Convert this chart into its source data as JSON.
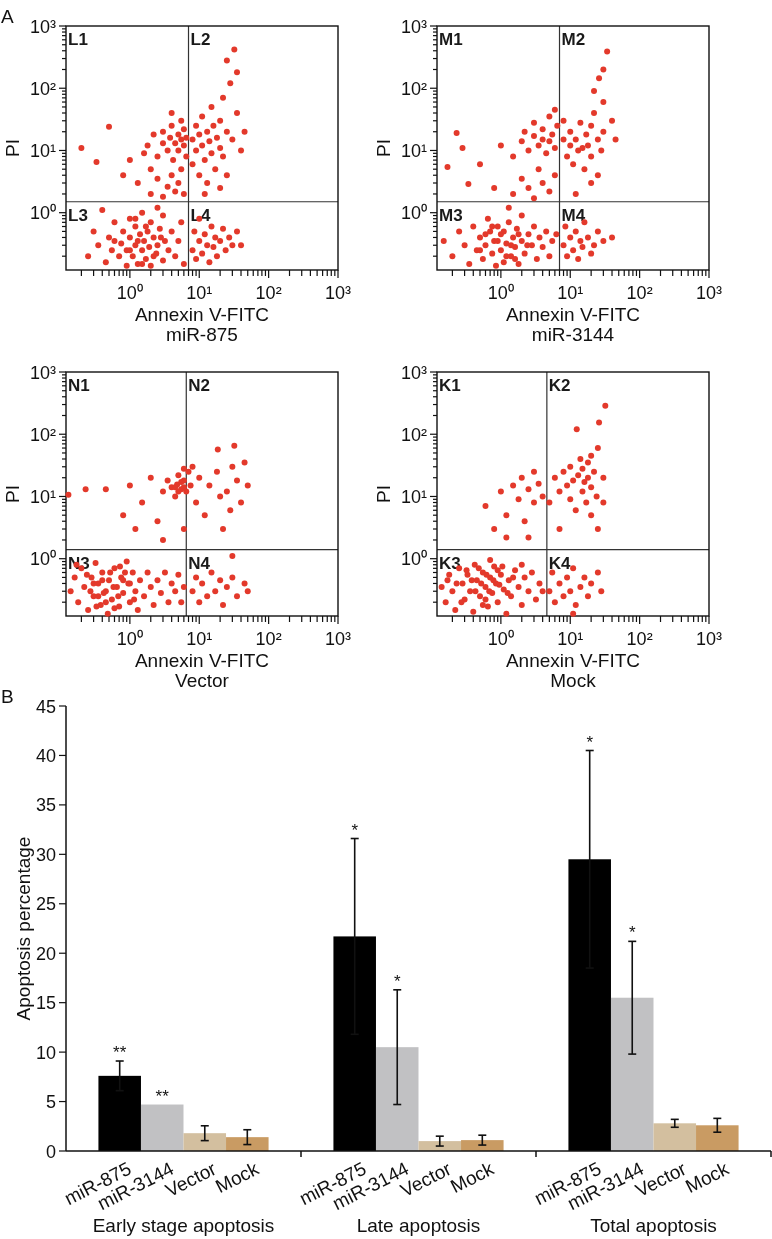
{
  "chart_data": [
    {
      "type": "scatter",
      "title": "A",
      "xlabel": "Annexin V-FITC",
      "ylabel": "PI",
      "annotations": [
        "L1",
        "L2",
        "L3",
        "L4",
        "miR-875"
      ],
      "log": "xy",
      "marker": "circle",
      "color": "#e3392b",
      "xlim": [
        0.12,
        1000
      ],
      "ylim": [
        0.12,
        1000
      ],
      "xticks": [
        {
          "value": 0.2,
          "label": null
        },
        {
          "value": 0.3,
          "label": null
        },
        {
          "value": 0.4,
          "label": null
        },
        {
          "value": 0.5,
          "label": null
        },
        {
          "value": 0.6,
          "label": null
        },
        {
          "value": 0.7,
          "label": null
        },
        {
          "value": 0.8,
          "label": null
        },
        {
          "value": 0.9,
          "label": null
        },
        {
          "value": 1,
          "label": "10⁰"
        },
        {
          "value": 2,
          "label": null
        },
        {
          "value": 3,
          "label": null
        },
        {
          "value": 4,
          "label": null
        },
        {
          "value": 5,
          "label": null
        },
        {
          "value": 6,
          "label": null
        },
        {
          "value": 7,
          "label": null
        },
        {
          "value": 8,
          "label": null
        },
        {
          "value": 9,
          "label": null
        },
        {
          "value": 10,
          "label": "10¹"
        },
        {
          "value": 20,
          "label": null
        },
        {
          "value": 30,
          "label": null
        },
        {
          "value": 40,
          "label": null
        },
        {
          "value": 50,
          "label": null
        },
        {
          "value": 60,
          "label": null
        },
        {
          "value": 70,
          "label": null
        },
        {
          "value": 80,
          "label": null
        },
        {
          "value": 90,
          "label": null
        },
        {
          "value": 100,
          "label": "10²"
        },
        {
          "value": 200,
          "label": null
        },
        {
          "value": 300,
          "label": null
        },
        {
          "value": 400,
          "label": null
        },
        {
          "value": 500,
          "label": null
        },
        {
          "value": 600,
          "label": null
        },
        {
          "value": 700,
          "label": null
        },
        {
          "value": 800,
          "label": null
        },
        {
          "value": 900,
          "label": null
        },
        {
          "value": 1000,
          "label": "10³"
        }
      ],
      "yticks": [
        {
          "value": 0.2,
          "label": null
        },
        {
          "value": 0.3,
          "label": null
        },
        {
          "value": 0.4,
          "label": null
        },
        {
          "value": 0.5,
          "label": null
        },
        {
          "value": 0.6,
          "label": null
        },
        {
          "value": 0.7,
          "label": null
        },
        {
          "value": 0.8,
          "label": null
        },
        {
          "value": 0.9,
          "label": null
        },
        {
          "value": 1,
          "label": "10⁰"
        },
        {
          "value": 2,
          "label": null
        },
        {
          "value": 3,
          "label": null
        },
        {
          "value": 4,
          "label": null
        },
        {
          "value": 5,
          "label": null
        },
        {
          "value": 6,
          "label": null
        },
        {
          "value": 7,
          "label": null
        },
        {
          "value": 8,
          "label": null
        },
        {
          "value": 9,
          "label": null
        },
        {
          "value": 10,
          "label": "10¹"
        },
        {
          "value": 20,
          "label": null
        },
        {
          "value": 30,
          "label": null
        },
        {
          "value": 40,
          "label": null
        },
        {
          "value": 50,
          "label": null
        },
        {
          "value": 60,
          "label": null
        },
        {
          "value": 70,
          "label": null
        },
        {
          "value": 80,
          "label": null
        },
        {
          "value": 90,
          "label": null
        },
        {
          "value": 100,
          "label": "10²"
        },
        {
          "value": 200,
          "label": null
        },
        {
          "value": 300,
          "label": null
        },
        {
          "value": 400,
          "label": null
        },
        {
          "value": 500,
          "label": null
        },
        {
          "value": 600,
          "label": null
        },
        {
          "value": 700,
          "label": null
        },
        {
          "value": 800,
          "label": null
        },
        {
          "value": 900,
          "label": null
        },
        {
          "value": 1000,
          "label": "10³"
        }
      ],
      "ref_lines": [
        {
          "axis": "x",
          "value": 7
        },
        {
          "axis": "y",
          "value": 1.5
        }
      ],
      "x": [
        0.25,
        0.3,
        0.35,
        0.45,
        0.5,
        0.55,
        0.6,
        0.7,
        0.75,
        0.8,
        0.9,
        0.9,
        1,
        1,
        1.1,
        1.2,
        1.2,
        1.3,
        1.4,
        1.5,
        1.5,
        1.6,
        1.7,
        1.8,
        1.9,
        2,
        2,
        2.2,
        2.4,
        2.5,
        2.7,
        3,
        3,
        3.2,
        3.6,
        4,
        4.5,
        5,
        5.5,
        6,
        2.5,
        0.4,
        1.3,
        1.7,
        2.2,
        1,
        0.6,
        2.8,
        1.5,
        1.2,
        8,
        8.5,
        9,
        10,
        10,
        11,
        12,
        13,
        14,
        15,
        16,
        17,
        18,
        20,
        22,
        24,
        27,
        30,
        35,
        40,
        2,
        2.5,
        3,
        3.5,
        4,
        4.5,
        5,
        5.5,
        6,
        2.5,
        3,
        3,
        3.5,
        3.8,
        4,
        4.2,
        4.5,
        5,
        5,
        5.5,
        5.5,
        6,
        6,
        6.5,
        6.5,
        4,
        1.8,
        2.2,
        8,
        8,
        9,
        9,
        10,
        10,
        11,
        11,
        12,
        13,
        13,
        14,
        15,
        15,
        16,
        17,
        18,
        20,
        20,
        22,
        22,
        25,
        25,
        28,
        30,
        32,
        35,
        35,
        40,
        45,
        12,
        20,
        25,
        0.2,
        0.33,
        0.5,
        0.8,
        1,
        1.3,
        1.6,
        2
      ],
      "values": [
        0.2,
        0.5,
        0.3,
        0.16,
        0.4,
        0.25,
        0.7,
        0.2,
        0.32,
        0.5,
        0.14,
        0.25,
        0.4,
        0.8,
        0.2,
        0.3,
        0.6,
        0.15,
        0.45,
        0.25,
        1,
        0.35,
        0.18,
        0.5,
        0.28,
        0.7,
        0.14,
        0.4,
        0.22,
        0.3,
        0.55,
        0.17,
        0.9,
        0.35,
        0.25,
        0.5,
        0.2,
        0.35,
        0.7,
        0.15,
        1.2,
        1.1,
        0.35,
        0.6,
        0.2,
        0.25,
        0.35,
        0.4,
        0.15,
        0.8,
        0.25,
        0.5,
        0.18,
        0.35,
        0.8,
        0.22,
        0.45,
        0.3,
        0.16,
        0.6,
        0.28,
        0.4,
        0.2,
        0.35,
        0.55,
        0.25,
        0.4,
        0.3,
        0.5,
        0.3,
        2,
        3.5,
        1.8,
        2.6,
        4,
        2.2,
        3,
        5,
        2,
        8,
        13,
        20,
        10,
        16,
        25,
        7,
        13,
        18,
        10,
        15,
        30,
        12,
        22,
        8,
        16,
        40,
        12,
        18,
        15,
        6,
        10,
        25,
        4,
        18,
        12,
        35,
        7,
        20,
        3,
        14,
        9,
        50,
        25,
        5,
        16,
        11,
        30,
        8,
        70,
        20,
        4,
        120,
        15,
        420,
        40,
        180,
        10,
        20,
        2,
        2.5,
        280,
        11,
        6.5,
        24,
        4,
        7,
        3,
        9,
        5
      ]
    },
    {
      "type": "scatter",
      "xlabel": "Annexin V-FITC",
      "ylabel": "PI",
      "annotations": [
        "M1",
        "M2",
        "M3",
        "M4",
        "miR-3144"
      ],
      "log": "xy",
      "marker": "circle",
      "color": "#e3392b",
      "xlim": [
        0.12,
        1000
      ],
      "ylim": [
        0.12,
        1000
      ],
      "xticks": [
        {
          "value": 0.2,
          "label": null
        },
        {
          "value": 0.3,
          "label": null
        },
        {
          "value": 0.4,
          "label": null
        },
        {
          "value": 0.5,
          "label": null
        },
        {
          "value": 0.6,
          "label": null
        },
        {
          "value": 0.7,
          "label": null
        },
        {
          "value": 0.8,
          "label": null
        },
        {
          "value": 0.9,
          "label": null
        },
        {
          "value": 1,
          "label": "10⁰"
        },
        {
          "value": 2,
          "label": null
        },
        {
          "value": 3,
          "label": null
        },
        {
          "value": 4,
          "label": null
        },
        {
          "value": 5,
          "label": null
        },
        {
          "value": 6,
          "label": null
        },
        {
          "value": 7,
          "label": null
        },
        {
          "value": 8,
          "label": null
        },
        {
          "value": 9,
          "label": null
        },
        {
          "value": 10,
          "label": "10¹"
        },
        {
          "value": 20,
          "label": null
        },
        {
          "value": 30,
          "label": null
        },
        {
          "value": 40,
          "label": null
        },
        {
          "value": 50,
          "label": null
        },
        {
          "value": 60,
          "label": null
        },
        {
          "value": 70,
          "label": null
        },
        {
          "value": 80,
          "label": null
        },
        {
          "value": 90,
          "label": null
        },
        {
          "value": 100,
          "label": "10²"
        },
        {
          "value": 200,
          "label": null
        },
        {
          "value": 300,
          "label": null
        },
        {
          "value": 400,
          "label": null
        },
        {
          "value": 500,
          "label": null
        },
        {
          "value": 600,
          "label": null
        },
        {
          "value": 700,
          "label": null
        },
        {
          "value": 800,
          "label": null
        },
        {
          "value": 900,
          "label": null
        },
        {
          "value": 1000,
          "label": "10³"
        }
      ],
      "yticks": [
        {
          "value": 0.2,
          "label": null
        },
        {
          "value": 0.3,
          "label": null
        },
        {
          "value": 0.4,
          "label": null
        },
        {
          "value": 0.5,
          "label": null
        },
        {
          "value": 0.6,
          "label": null
        },
        {
          "value": 0.7,
          "label": null
        },
        {
          "value": 0.8,
          "label": null
        },
        {
          "value": 0.9,
          "label": null
        },
        {
          "value": 1,
          "label": "10⁰"
        },
        {
          "value": 2,
          "label": null
        },
        {
          "value": 3,
          "label": null
        },
        {
          "value": 4,
          "label": null
        },
        {
          "value": 5,
          "label": null
        },
        {
          "value": 6,
          "label": null
        },
        {
          "value": 7,
          "label": null
        },
        {
          "value": 8,
          "label": null
        },
        {
          "value": 9,
          "label": null
        },
        {
          "value": 10,
          "label": "10¹"
        },
        {
          "value": 20,
          "label": null
        },
        {
          "value": 30,
          "label": null
        },
        {
          "value": 40,
          "label": null
        },
        {
          "value": 50,
          "label": null
        },
        {
          "value": 60,
          "label": null
        },
        {
          "value": 70,
          "label": null
        },
        {
          "value": 80,
          "label": null
        },
        {
          "value": 90,
          "label": null
        },
        {
          "value": 100,
          "label": "10²"
        },
        {
          "value": 200,
          "label": null
        },
        {
          "value": 300,
          "label": null
        },
        {
          "value": 400,
          "label": null
        },
        {
          "value": 500,
          "label": null
        },
        {
          "value": 600,
          "label": null
        },
        {
          "value": 700,
          "label": null
        },
        {
          "value": 800,
          "label": null
        },
        {
          "value": 900,
          "label": null
        },
        {
          "value": 1000,
          "label": "10³"
        }
      ],
      "ref_lines": [
        {
          "axis": "x",
          "value": 7
        },
        {
          "axis": "y",
          "value": 1.5
        }
      ],
      "x": [
        0.15,
        0.2,
        0.25,
        0.3,
        0.35,
        0.4,
        0.45,
        0.5,
        0.55,
        0.6,
        0.65,
        0.7,
        0.75,
        0.8,
        0.85,
        0.9,
        1,
        1,
        1.1,
        1.2,
        1.3,
        1.4,
        1.5,
        1.6,
        1.7,
        1.8,
        2,
        2,
        2.2,
        2.5,
        2.8,
        3,
        3.3,
        3.6,
        4,
        4.5,
        5,
        5.5,
        6.3,
        1.3,
        0.6,
        0.9,
        1.1,
        1.4,
        0.75,
        1.8,
        1.2,
        0.5,
        2.4,
        1.6,
        8,
        8.5,
        9,
        10,
        11,
        12,
        13,
        14,
        15,
        16,
        18,
        20,
        22,
        25,
        30,
        40,
        1.5,
        2,
        2.5,
        3,
        3.5,
        4,
        5,
        6,
        0.8,
        0.5,
        1.5,
        2,
        2.2,
        2.5,
        3,
        3,
        3.5,
        4,
        4,
        4.5,
        5,
        5,
        5.5,
        6,
        6.5,
        6,
        8,
        8,
        9,
        10,
        10,
        11,
        12,
        13,
        14,
        15,
        16,
        17,
        18,
        20,
        20,
        22,
        25,
        25,
        28,
        30,
        30,
        34,
        26,
        40,
        45,
        20,
        12,
        30,
        22,
        0.17,
        0.23,
        0.28,
        0.34,
        1
      ],
      "values": [
        0.35,
        0.2,
        0.5,
        0.3,
        0.15,
        0.6,
        0.25,
        0.4,
        0.18,
        0.3,
        0.8,
        0.5,
        0.22,
        0.35,
        0.14,
        0.6,
        0.25,
        0.45,
        0.16,
        0.32,
        0.7,
        0.2,
        0.4,
        0.28,
        0.55,
        0.15,
        0.35,
        0.9,
        0.22,
        0.45,
        0.3,
        0.6,
        0.18,
        0.4,
        0.28,
        0.5,
        0.2,
        0.35,
        0.45,
        1.2,
        0.45,
        0.35,
        0.5,
        0.3,
        0.6,
        0.45,
        0.2,
        0.25,
        0.3,
        0.18,
        0.3,
        0.6,
        0.2,
        0.4,
        0.25,
        0.5,
        0.18,
        0.35,
        0.28,
        0.7,
        0.4,
        0.22,
        0.3,
        0.5,
        0.35,
        0.4,
        2,
        3.5,
        2.5,
        1.7,
        5,
        3,
        2.2,
        4,
        2.5,
        6,
        8,
        14,
        20,
        10,
        17,
        28,
        12,
        15,
        22,
        9,
        14,
        35,
        18,
        11,
        25,
        45,
        15,
        30,
        8,
        12,
        20,
        6,
        15,
        10,
        28,
        11,
        5,
        18,
        12,
        25,
        8,
        40,
        15,
        4,
        10,
        60,
        20,
        390,
        145,
        30,
        15,
        3,
        2,
        200,
        90,
        5.4,
        19,
        11,
        2.9,
        12
      ]
    },
    {
      "type": "scatter",
      "xlabel": "Annexin V-FITC",
      "ylabel": "PI",
      "annotations": [
        "N1",
        "N2",
        "N3",
        "N4",
        "Vector"
      ],
      "log": "xy",
      "marker": "circle",
      "color": "#e3392b",
      "xlim": [
        0.12,
        1000
      ],
      "ylim": [
        0.12,
        1000
      ],
      "xticks": [
        {
          "value": 0.2,
          "label": null
        },
        {
          "value": 0.3,
          "label": null
        },
        {
          "value": 0.4,
          "label": null
        },
        {
          "value": 0.5,
          "label": null
        },
        {
          "value": 0.6,
          "label": null
        },
        {
          "value": 0.7,
          "label": null
        },
        {
          "value": 0.8,
          "label": null
        },
        {
          "value": 0.9,
          "label": null
        },
        {
          "value": 1,
          "label": "10⁰"
        },
        {
          "value": 2,
          "label": null
        },
        {
          "value": 3,
          "label": null
        },
        {
          "value": 4,
          "label": null
        },
        {
          "value": 5,
          "label": null
        },
        {
          "value": 6,
          "label": null
        },
        {
          "value": 7,
          "label": null
        },
        {
          "value": 8,
          "label": null
        },
        {
          "value": 9,
          "label": null
        },
        {
          "value": 10,
          "label": "10¹"
        },
        {
          "value": 20,
          "label": null
        },
        {
          "value": 30,
          "label": null
        },
        {
          "value": 40,
          "label": null
        },
        {
          "value": 50,
          "label": null
        },
        {
          "value": 60,
          "label": null
        },
        {
          "value": 70,
          "label": null
        },
        {
          "value": 80,
          "label": null
        },
        {
          "value": 90,
          "label": null
        },
        {
          "value": 100,
          "label": "10²"
        },
        {
          "value": 200,
          "label": null
        },
        {
          "value": 300,
          "label": null
        },
        {
          "value": 400,
          "label": null
        },
        {
          "value": 500,
          "label": null
        },
        {
          "value": 600,
          "label": null
        },
        {
          "value": 700,
          "label": null
        },
        {
          "value": 800,
          "label": null
        },
        {
          "value": 900,
          "label": null
        },
        {
          "value": 1000,
          "label": "10³"
        }
      ],
      "yticks": [
        {
          "value": 0.2,
          "label": null
        },
        {
          "value": 0.3,
          "label": null
        },
        {
          "value": 0.4,
          "label": null
        },
        {
          "value": 0.5,
          "label": null
        },
        {
          "value": 0.6,
          "label": null
        },
        {
          "value": 0.7,
          "label": null
        },
        {
          "value": 0.8,
          "label": null
        },
        {
          "value": 0.9,
          "label": null
        },
        {
          "value": 1,
          "label": "10⁰"
        },
        {
          "value": 2,
          "label": null
        },
        {
          "value": 3,
          "label": null
        },
        {
          "value": 4,
          "label": null
        },
        {
          "value": 5,
          "label": null
        },
        {
          "value": 6,
          "label": null
        },
        {
          "value": 7,
          "label": null
        },
        {
          "value": 8,
          "label": null
        },
        {
          "value": 9,
          "label": null
        },
        {
          "value": 10,
          "label": "10¹"
        },
        {
          "value": 20,
          "label": null
        },
        {
          "value": 30,
          "label": null
        },
        {
          "value": 40,
          "label": null
        },
        {
          "value": 50,
          "label": null
        },
        {
          "value": 60,
          "label": null
        },
        {
          "value": 70,
          "label": null
        },
        {
          "value": 80,
          "label": null
        },
        {
          "value": 90,
          "label": null
        },
        {
          "value": 100,
          "label": "10²"
        },
        {
          "value": 200,
          "label": null
        },
        {
          "value": 300,
          "label": null
        },
        {
          "value": 400,
          "label": null
        },
        {
          "value": 500,
          "label": null
        },
        {
          "value": 600,
          "label": null
        },
        {
          "value": 700,
          "label": null
        },
        {
          "value": 800,
          "label": null
        },
        {
          "value": 900,
          "label": null
        },
        {
          "value": 1000,
          "label": "10³"
        }
      ],
      "ref_lines": [
        {
          "axis": "x",
          "value": 6.5
        },
        {
          "axis": "y",
          "value": 1.4
        }
      ],
      "x": [
        0.14,
        0.16,
        0.18,
        0.2,
        0.22,
        0.25,
        0.28,
        0.3,
        0.32,
        0.35,
        0.38,
        0.4,
        0.45,
        0.48,
        0.5,
        0.55,
        0.6,
        0.65,
        0.7,
        0.75,
        0.8,
        0.9,
        0.95,
        1,
        1.1,
        1.2,
        1.3,
        1.4,
        1.6,
        1.8,
        2,
        2.2,
        2.5,
        2.8,
        3.2,
        3.6,
        4,
        4.5,
        5,
        5.5,
        6,
        0.6,
        0.35,
        0.8,
        0.17,
        0.24,
        0.27,
        0.33,
        0.4,
        0.42,
        0.52,
        0.58,
        0.68,
        0.72,
        0.85,
        1,
        1.15,
        0.3,
        0.45,
        8,
        9,
        10,
        11,
        13,
        15,
        17,
        20,
        22,
        25,
        30,
        35,
        45,
        50,
        30,
        0.13,
        0.23,
        0.45,
        0.8,
        1,
        1.2,
        1.5,
        2,
        2.5,
        3,
        3.5,
        4,
        4.5,
        4.8,
        5,
        5.5,
        6,
        6,
        6.5,
        7,
        7.5,
        8,
        9,
        10,
        12,
        14,
        18.5,
        18,
        20,
        22,
        25,
        28,
        30,
        35,
        40,
        45,
        32,
        50,
        3,
        6,
        5.5,
        4.5,
        6,
        5
      ],
      "values": [
        0.3,
        0.5,
        0.2,
        0.7,
        0.35,
        0.15,
        0.5,
        0.25,
        0.85,
        0.4,
        0.18,
        0.6,
        0.3,
        0.13,
        0.45,
        0.22,
        0.7,
        0.35,
        0.17,
        0.5,
        0.28,
        0.9,
        0.4,
        0.2,
        0.6,
        0.3,
        0.15,
        0.45,
        0.25,
        0.6,
        0.35,
        0.18,
        0.45,
        0.28,
        0.6,
        0.2,
        0.4,
        0.3,
        0.55,
        0.2,
        0.35,
        0.16,
        0.25,
        0.45,
        0.8,
        0.55,
        0.3,
        0.17,
        0.45,
        0.28,
        0.6,
        0.35,
        0.25,
        0.75,
        0.6,
        0.4,
        0.22,
        0.4,
        0.2,
        0.3,
        0.5,
        0.2,
        0.4,
        0.25,
        0.6,
        0.3,
        0.45,
        0.18,
        0.35,
        0.5,
        0.25,
        0.4,
        0.3,
        1.1,
        10.7,
        13,
        13,
        5,
        15,
        3,
        8,
        20,
        4,
        12,
        18,
        14,
        10,
        15.5,
        22,
        13,
        18,
        28,
        12,
        25,
        15,
        30,
        8,
        20,
        5,
        15,
        57,
        25,
        10,
        3,
        12,
        6,
        30,
        18,
        8,
        35,
        65,
        15,
        2,
        3,
        17,
        14,
        14,
        12
      ]
    },
    {
      "type": "scatter",
      "xlabel": "Annexin V-FITC",
      "ylabel": "PI",
      "annotations": [
        "K1",
        "K2",
        "K3",
        "K4",
        "Mock"
      ],
      "log": "xy",
      "marker": "circle",
      "color": "#e3392b",
      "xlim": [
        0.12,
        1000
      ],
      "ylim": [
        0.12,
        1000
      ],
      "xticks": [
        {
          "value": 0.2,
          "label": null
        },
        {
          "value": 0.3,
          "label": null
        },
        {
          "value": 0.4,
          "label": null
        },
        {
          "value": 0.5,
          "label": null
        },
        {
          "value": 0.6,
          "label": null
        },
        {
          "value": 0.7,
          "label": null
        },
        {
          "value": 0.8,
          "label": null
        },
        {
          "value": 0.9,
          "label": null
        },
        {
          "value": 1,
          "label": "10⁰"
        },
        {
          "value": 2,
          "label": null
        },
        {
          "value": 3,
          "label": null
        },
        {
          "value": 4,
          "label": null
        },
        {
          "value": 5,
          "label": null
        },
        {
          "value": 6,
          "label": null
        },
        {
          "value": 7,
          "label": null
        },
        {
          "value": 8,
          "label": null
        },
        {
          "value": 9,
          "label": null
        },
        {
          "value": 10,
          "label": "10¹"
        },
        {
          "value": 20,
          "label": null
        },
        {
          "value": 30,
          "label": null
        },
        {
          "value": 40,
          "label": null
        },
        {
          "value": 50,
          "label": null
        },
        {
          "value": 60,
          "label": null
        },
        {
          "value": 70,
          "label": null
        },
        {
          "value": 80,
          "label": null
        },
        {
          "value": 90,
          "label": null
        },
        {
          "value": 100,
          "label": "10²"
        },
        {
          "value": 200,
          "label": null
        },
        {
          "value": 300,
          "label": null
        },
        {
          "value": 400,
          "label": null
        },
        {
          "value": 500,
          "label": null
        },
        {
          "value": 600,
          "label": null
        },
        {
          "value": 700,
          "label": null
        },
        {
          "value": 800,
          "label": null
        },
        {
          "value": 900,
          "label": null
        },
        {
          "value": 1000,
          "label": "10³"
        }
      ],
      "yticks": [
        {
          "value": 0.2,
          "label": null
        },
        {
          "value": 0.3,
          "label": null
        },
        {
          "value": 0.4,
          "label": null
        },
        {
          "value": 0.5,
          "label": null
        },
        {
          "value": 0.6,
          "label": null
        },
        {
          "value": 0.7,
          "label": null
        },
        {
          "value": 0.8,
          "label": null
        },
        {
          "value": 0.9,
          "label": null
        },
        {
          "value": 1,
          "label": "10⁰"
        },
        {
          "value": 2,
          "label": null
        },
        {
          "value": 3,
          "label": null
        },
        {
          "value": 4,
          "label": null
        },
        {
          "value": 5,
          "label": null
        },
        {
          "value": 6,
          "label": null
        },
        {
          "value": 7,
          "label": null
        },
        {
          "value": 8,
          "label": null
        },
        {
          "value": 9,
          "label": null
        },
        {
          "value": 10,
          "label": "10¹"
        },
        {
          "value": 20,
          "label": null
        },
        {
          "value": 30,
          "label": null
        },
        {
          "value": 40,
          "label": null
        },
        {
          "value": 50,
          "label": null
        },
        {
          "value": 60,
          "label": null
        },
        {
          "value": 70,
          "label": null
        },
        {
          "value": 80,
          "label": null
        },
        {
          "value": 90,
          "label": null
        },
        {
          "value": 100,
          "label": "10²"
        },
        {
          "value": 200,
          "label": null
        },
        {
          "value": 300,
          "label": null
        },
        {
          "value": 400,
          "label": null
        },
        {
          "value": 500,
          "label": null
        },
        {
          "value": 600,
          "label": null
        },
        {
          "value": 700,
          "label": null
        },
        {
          "value": 800,
          "label": null
        },
        {
          "value": 900,
          "label": null
        },
        {
          "value": 1000,
          "label": "10³"
        }
      ],
      "ref_lines": [
        {
          "axis": "x",
          "value": 4.6
        },
        {
          "axis": "y",
          "value": 1.4
        }
      ],
      "x": [
        0.14,
        0.16,
        0.18,
        0.2,
        0.22,
        0.25,
        0.28,
        0.3,
        0.33,
        0.36,
        0.4,
        0.42,
        0.45,
        0.5,
        0.55,
        0.6,
        0.65,
        0.7,
        0.75,
        0.8,
        0.85,
        0.9,
        1,
        1.1,
        1.2,
        1.3,
        1.4,
        1.6,
        1.8,
        2,
        2.2,
        2.5,
        2.8,
        3.2,
        3.6,
        4,
        0.7,
        0.55,
        0.17,
        0.23,
        0.27,
        0.32,
        0.38,
        0.43,
        0.48,
        0.52,
        0.62,
        0.68,
        0.78,
        0.95,
        1.05,
        1.25,
        1.5,
        2,
        0.6,
        0.9,
        5,
        5.5,
        6,
        7,
        8,
        9,
        10,
        11,
        12,
        14,
        16,
        18,
        20,
        25,
        28,
        11,
        0.6,
        0.8,
        1,
        1.2,
        1.5,
        1.8,
        2,
        2.2,
        2.5,
        3,
        3,
        3.5,
        4,
        1.2,
        2.5,
        5,
        6,
        7,
        7,
        8,
        9,
        10,
        10,
        11,
        12,
        13,
        14,
        15,
        15,
        16,
        17,
        18,
        18,
        20,
        20,
        22,
        24,
        25,
        25,
        26,
        30,
        32,
        12.4,
        30,
        20
      ],
      "values": [
        0.35,
        0.2,
        0.55,
        0.3,
        0.15,
        0.7,
        0.4,
        0.22,
        0.55,
        0.3,
        0.14,
        0.8,
        0.45,
        0.25,
        0.6,
        0.35,
        0.17,
        0.5,
        0.28,
        0.75,
        0.4,
        0.2,
        0.55,
        0.32,
        0.13,
        0.45,
        0.25,
        0.65,
        0.35,
        0.18,
        0.5,
        0.3,
        0.6,
        0.22,
        0.4,
        0.3,
        0.95,
        0.18,
        0.45,
        0.4,
        0.2,
        0.65,
        0.45,
        0.3,
        0.7,
        0.4,
        0.55,
        0.3,
        0.45,
        0.38,
        0.75,
        0.28,
        0.5,
        0.8,
        0.22,
        0.65,
        0.3,
        0.6,
        0.2,
        0.4,
        0.25,
        0.5,
        0.3,
        0.7,
        0.18,
        0.35,
        0.5,
        0.25,
        0.4,
        0.6,
        0.3,
        0.13,
        7,
        3,
        12,
        5,
        15,
        9,
        20,
        4,
        13,
        8,
        25,
        16,
        10,
        2.2,
        2.2,
        8,
        20,
        12,
        3,
        25,
        15,
        30,
        9,
        18,
        6,
        22,
        40,
        12,
        28,
        17,
        8,
        35,
        20,
        14,
        5,
        25,
        10,
        60,
        3,
        155,
        20,
        288,
        120,
        8,
        45
      ]
    },
    {
      "type": "bar",
      "title": "B",
      "ylabel": "Apoptosis percentage",
      "categories": [
        "Early stage apoptosis",
        "Late apoptosis",
        "Total apoptosis"
      ],
      "ylim": [
        0,
        45
      ],
      "yticks": [
        0,
        5,
        10,
        15,
        20,
        25,
        30,
        35,
        40,
        45
      ],
      "annotations": [
        "**",
        "**",
        "*",
        "*",
        "*",
        "*"
      ],
      "series": [
        {
          "name": "miR-875",
          "color": "#000000",
          "values": [
            7.6,
            21.7,
            29.5
          ],
          "errors": [
            1.5,
            9.9,
            11
          ]
        },
        {
          "name": "miR-3144",
          "color": "#c1c1c3",
          "values": [
            4.7,
            10.5,
            15.5
          ],
          "errors": [
            null,
            5.8,
            5.7
          ]
        },
        {
          "name": "Vector",
          "color": "#d3bf9f",
          "values": [
            1.8,
            1.0,
            2.8
          ],
          "errors": [
            0.75,
            0.5,
            0.4
          ]
        },
        {
          "name": "Mock",
          "color": "#c99b63",
          "values": [
            1.4,
            1.1,
            2.6
          ],
          "errors": [
            0.75,
            0.5,
            0.7
          ]
        }
      ]
    }
  ]
}
